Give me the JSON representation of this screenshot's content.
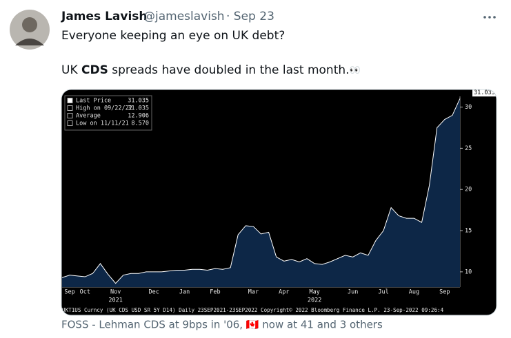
{
  "tweet": {
    "name": "James Lavish",
    "handle": "@jameslavish",
    "date": "· Sep 23",
    "line1": "Everyone keeping an eye on UK debt?",
    "line2": [
      "UK ",
      "CDS",
      " spreads have doubled in the last month.",
      "👀"
    ],
    "footer": "FOSS - Lehman CDS at 9bps in '06, 🇨🇦 now at 41 and 3 others"
  },
  "chart_data": {
    "type": "area",
    "legend_rows": [
      [
        "Last Price",
        "31.035"
      ],
      [
        "High on 09/22/22",
        "31.035"
      ],
      [
        "Average",
        "12.906"
      ],
      [
        "Low on 11/11/21",
        "8.570"
      ]
    ],
    "last_price_tag": "31.035",
    "footer": "UKT1US Curncy (UK CDS USD SR 5Y D14)  Daily 23SEP2021-23SEP2022     Copyright© 2022 Bloomberg Finance L.P.     23-Sep-2022 09:26:4",
    "categories": [
      null,
      "Sep",
      null,
      "Oct",
      null,
      null,
      null,
      "Nov",
      null,
      null,
      null,
      null,
      "Dec",
      null,
      null,
      null,
      "Jan",
      null,
      null,
      null,
      "Feb",
      null,
      null,
      null,
      null,
      "Mar",
      null,
      null,
      null,
      "Apr",
      null,
      null,
      null,
      "May",
      null,
      null,
      null,
      null,
      "Jun",
      null,
      null,
      null,
      "Jul",
      null,
      null,
      null,
      "Aug",
      null,
      null,
      null,
      "Sep",
      null,
      null
    ],
    "category_years": [
      null,
      null,
      null,
      null,
      null,
      null,
      null,
      "2021",
      null,
      null,
      null,
      null,
      null,
      null,
      null,
      null,
      null,
      null,
      null,
      null,
      null,
      null,
      null,
      null,
      null,
      null,
      null,
      null,
      null,
      null,
      null,
      null,
      null,
      "2022",
      null,
      null,
      null,
      null,
      null,
      null,
      null,
      null,
      null,
      null,
      null,
      null,
      null,
      null,
      null,
      null,
      null,
      null,
      null
    ],
    "series": [
      {
        "name": "Last Price",
        "color": "#ffffff",
        "values": [
          9.3,
          9.6,
          9.5,
          9.4,
          9.8,
          11.0,
          9.7,
          8.6,
          9.6,
          9.8,
          9.8,
          10.0,
          10.0,
          10.0,
          10.1,
          10.2,
          10.2,
          10.3,
          10.3,
          10.2,
          10.4,
          10.3,
          10.5,
          14.5,
          15.6,
          15.5,
          14.6,
          14.8,
          11.8,
          11.3,
          11.5,
          11.2,
          11.6,
          11.0,
          10.9,
          11.2,
          11.6,
          12.0,
          11.8,
          12.3,
          12.0,
          13.8,
          15.0,
          17.8,
          16.8,
          16.5,
          16.5,
          16.0,
          20.5,
          27.5,
          28.5,
          29.0,
          31.035
        ]
      }
    ],
    "fill": "#0d2747",
    "ylim": [
      8.15,
      31.3
    ],
    "yticks": [
      10,
      15,
      20,
      25,
      30
    ]
  }
}
